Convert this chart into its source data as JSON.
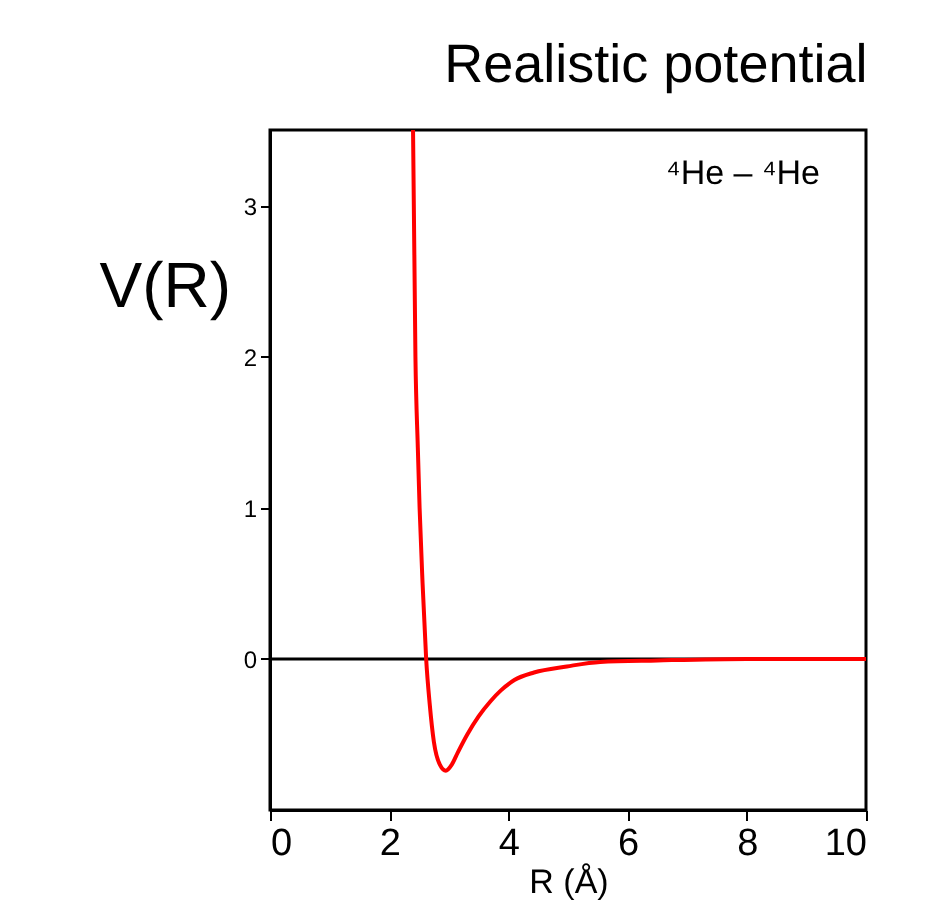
{
  "chart_data": {
    "type": "line",
    "title": "Realistic potential",
    "ylabel": "V(R)",
    "xlabel": "R (Å)",
    "annotations": [
      "⁴He – ⁴He"
    ],
    "x": [
      2.4,
      2.44,
      2.48,
      2.51,
      2.56,
      2.62,
      2.68,
      2.75,
      2.85,
      2.95,
      3.05,
      3.15,
      3.31,
      3.5,
      3.7,
      3.87,
      4.1,
      4.43,
      4.98,
      5.54,
      6.5,
      8,
      10
    ],
    "series": [
      {
        "color": "#ff0000",
        "values": [
          3.5,
          2.0,
          1.4,
          1.0,
          0.5,
          0.0,
          -0.3,
          -0.55,
          -0.7,
          -0.74,
          -0.7,
          -0.62,
          -0.5,
          -0.38,
          -0.28,
          -0.21,
          -0.14,
          -0.09,
          -0.05,
          -0.02,
          -0.01,
          0,
          0
        ]
      }
    ],
    "xlim": [
      0,
      10
    ],
    "xticks": [
      0,
      2,
      4,
      6,
      8,
      10
    ],
    "ylim": [
      -1,
      3.5
    ],
    "yticks": [
      0,
      1,
      2,
      3
    ],
    "ref_lines": [
      {
        "axis": "y",
        "value": 0,
        "color": "#000000"
      }
    ],
    "grid": false
  }
}
